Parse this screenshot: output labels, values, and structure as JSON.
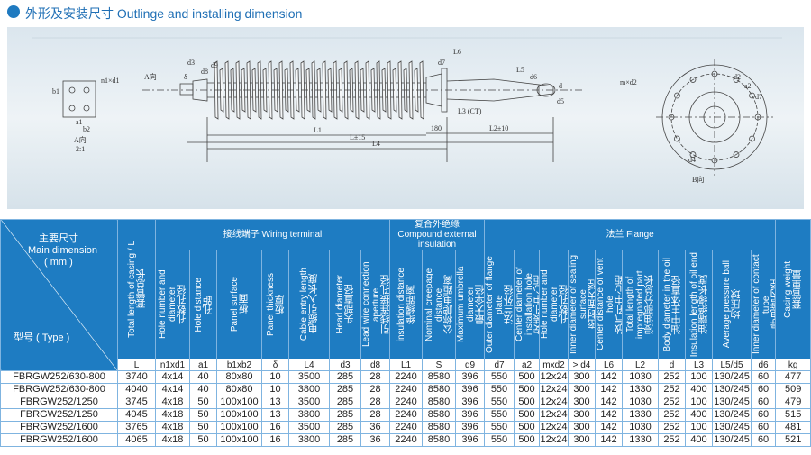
{
  "header": {
    "title": "外形及安装尺寸 Outlinge and installing dimension"
  },
  "drawing": {
    "labels": [
      "A向",
      "δ",
      "d3",
      "d8",
      "d9",
      "L3 (CT)",
      "d7",
      "L6",
      "d",
      "d6",
      "L5",
      "d5",
      "180",
      "L2±10",
      "L1",
      "L4",
      "L±15",
      "b1",
      "a1",
      "b2",
      "n1×d1",
      "A向",
      "2:1",
      "B向",
      "d2",
      "d7",
      "a2",
      "m×d2",
      "d4"
    ]
  },
  "table": {
    "corner": {
      "top": "主要尺寸",
      "top_en": "Main dimension",
      "unit": "( mm )",
      "bottom": "型号 ( Type )"
    },
    "groups": [
      {
        "cn": "接线端子",
        "en": "Wiring terminal"
      },
      {
        "cn": "复合外绝缘",
        "en": "Compound external insulation"
      },
      {
        "cn": "法兰",
        "en": "Flange"
      }
    ],
    "columns": [
      {
        "en": "Total length of casing / L",
        "cn": "套管总长",
        "symbol": "L"
      },
      {
        "en": "Hole number and diameter",
        "cn": "孔数孔径",
        "symbol": "n1xd1"
      },
      {
        "en": "Hole distance",
        "cn": "孔距",
        "symbol": "a1"
      },
      {
        "en": "Panel surface",
        "cn": "板面",
        "symbol": "b1xb2"
      },
      {
        "en": "Panel thickness",
        "cn": "板厚",
        "symbol": "δ"
      },
      {
        "en": "Cable entry length",
        "cn": "电缆引入长度",
        "symbol": "L4"
      },
      {
        "en": "Head diameter",
        "cn": "头部直径",
        "symbol": "d3"
      },
      {
        "en": "Lead wire connection aperture",
        "cn": "引线连接孔径",
        "symbol": "d8"
      },
      {
        "en": "insulation distance",
        "cn": "绝缘距离",
        "symbol": "L1"
      },
      {
        "en": "Nominal creepage distance",
        "cn": "公称爬电距离",
        "symbol": "S"
      },
      {
        "en": "Maximum umbrella diameter",
        "cn": "最大伞径",
        "symbol": "d9"
      },
      {
        "en": "Outer diameter of flange plate",
        "cn": "法兰外径",
        "symbol": "d7"
      },
      {
        "en": "Center diameter of installation hole",
        "cn": "安装孔中心距",
        "symbol": "a2"
      },
      {
        "en": "Hole number and diameter",
        "cn": "孔数孔径",
        "symbol": "mxd2"
      },
      {
        "en": "Inner diameter of sealing surface",
        "cn": "密封面内径",
        "symbol": "> d4"
      },
      {
        "en": "Center distance of vent hole",
        "cn": "放气孔中心距",
        "symbol": "L6"
      },
      {
        "en": "Total length of impregnated part",
        "cn": "浸油部分总长",
        "symbol": "L2"
      },
      {
        "en": "Body diameter in the oil",
        "cn": "油中主体直径",
        "symbol": "d"
      },
      {
        "en": "Insulation length of oil end",
        "cn": "油端绝缘长度",
        "symbol": "L3"
      },
      {
        "en": "Average pressure ball",
        "cn": "均压球",
        "symbol": "L5/d5"
      },
      {
        "en": "Inner diameter of contact tube",
        "cn": "导电管内径",
        "symbol": "d6"
      },
      {
        "en": "Casing weight",
        "cn": "套管重量",
        "symbol": "kg"
      }
    ],
    "rows": [
      [
        "FBRGW252/630-800",
        "3740",
        "4x14",
        "40",
        "80x80",
        "10",
        "3500",
        "285",
        "28",
        "2240",
        "8580",
        "396",
        "550",
        "500",
        "12x24",
        "300",
        "142",
        "1030",
        "252",
        "100",
        "130/245",
        "60",
        "477"
      ],
      [
        "FBRGW252/630-800",
        "4040",
        "4x14",
        "40",
        "80x80",
        "10",
        "3800",
        "285",
        "28",
        "2240",
        "8580",
        "396",
        "550",
        "500",
        "12x24",
        "300",
        "142",
        "1330",
        "252",
        "400",
        "130/245",
        "60",
        "509"
      ],
      [
        "FBRGW252/1250",
        "3745",
        "4x18",
        "50",
        "100x100",
        "13",
        "3500",
        "285",
        "28",
        "2240",
        "8580",
        "396",
        "550",
        "500",
        "12x24",
        "300",
        "142",
        "1030",
        "252",
        "100",
        "130/245",
        "60",
        "479"
      ],
      [
        "FBRGW252/1250",
        "4045",
        "4x18",
        "50",
        "100x100",
        "13",
        "3800",
        "285",
        "28",
        "2240",
        "8580",
        "396",
        "550",
        "500",
        "12x24",
        "300",
        "142",
        "1330",
        "252",
        "400",
        "130/245",
        "60",
        "515"
      ],
      [
        "FBRGW252/1600",
        "3765",
        "4x18",
        "50",
        "100x100",
        "16",
        "3500",
        "285",
        "36",
        "2240",
        "8580",
        "396",
        "550",
        "500",
        "12x24",
        "300",
        "142",
        "1030",
        "252",
        "100",
        "130/245",
        "60",
        "481"
      ],
      [
        "FBRGW252/1600",
        "4065",
        "4x18",
        "50",
        "100x100",
        "16",
        "3800",
        "285",
        "36",
        "2240",
        "8580",
        "396",
        "550",
        "500",
        "12x24",
        "300",
        "142",
        "1330",
        "252",
        "400",
        "130/245",
        "60",
        "521"
      ]
    ]
  }
}
